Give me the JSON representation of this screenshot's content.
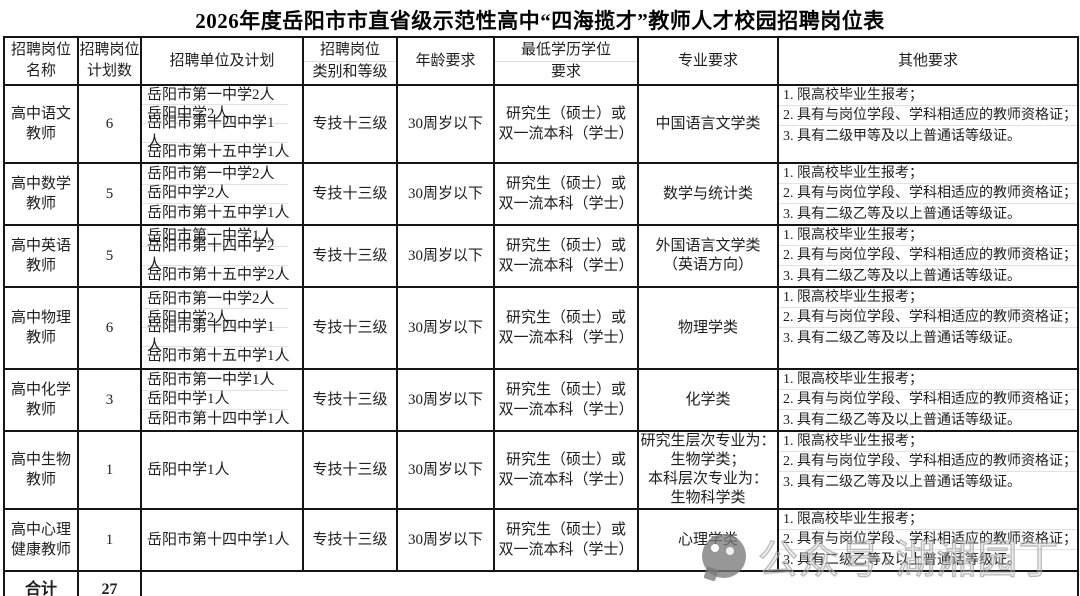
{
  "title": "2026年度岳阳市市直省级示范性高中“四海揽才”教师人才校园招聘岗位表",
  "header_cols": [
    {
      "lines": [
        "招聘岗位",
        "名称"
      ]
    },
    {
      "lines": [
        "招聘岗位",
        "计划数"
      ]
    },
    {
      "lines": [
        "招聘单位及计划"
      ]
    },
    {
      "lines": [
        "招聘岗位",
        "类别和等级"
      ],
      "divider": true
    },
    {
      "lines": [
        "年龄要求"
      ]
    },
    {
      "lines": [
        "最低学历学位",
        "要求"
      ],
      "divider": true
    },
    {
      "lines": [
        "专业要求"
      ]
    },
    {
      "lines": [
        "其他要求"
      ]
    }
  ],
  "rows": [
    {
      "name_lines": [
        "高中语文",
        "教师"
      ],
      "count": "6",
      "units": [
        "岳阳市第一中学2人",
        "岳阳中学2人",
        "岳阳市第十四中学1人",
        "岳阳市第十五中学1人"
      ],
      "grade": "专技十三级",
      "age": "30周岁以下",
      "degree_lines": [
        "研究生（硕士）或",
        "双一流本科（学士）"
      ],
      "major_lines": [
        "中国语言文学类"
      ],
      "others": [
        "1. 限高校毕业生报考；",
        "2. 具有与岗位学段、学科相适应的教师资格证；",
        "3. 具有二级甲等及以上普通话等级证。"
      ]
    },
    {
      "name_lines": [
        "高中数学",
        "教师"
      ],
      "count": "5",
      "units": [
        "岳阳市第一中学2人",
        "岳阳中学2人",
        "岳阳市第十五中学1人"
      ],
      "grade": "专技十三级",
      "age": "30周岁以下",
      "degree_lines": [
        "研究生（硕士）或",
        "双一流本科（学士）"
      ],
      "major_lines": [
        "数学与统计类"
      ],
      "others": [
        "1. 限高校毕业生报考；",
        "2. 具有与岗位学段、学科相适应的教师资格证；",
        "3. 具有二级乙等及以上普通话等级证。"
      ]
    },
    {
      "name_lines": [
        "高中英语",
        "教师"
      ],
      "count": "5",
      "units": [
        "岳阳市第一中学1人",
        "岳阳市第十四中学2人",
        "岳阳市第十五中学2人"
      ],
      "grade": "专技十三级",
      "age": "30周岁以下",
      "degree_lines": [
        "研究生（硕士）或",
        "双一流本科（学士）"
      ],
      "major_lines": [
        "外国语言文学类",
        "（英语方向）"
      ],
      "others": [
        "1. 限高校毕业生报考；",
        "2. 具有与岗位学段、学科相适应的教师资格证；",
        "3. 具有二级乙等及以上普通话等级证。"
      ]
    },
    {
      "name_lines": [
        "高中物理",
        "教师"
      ],
      "count": "6",
      "units": [
        "岳阳市第一中学2人",
        "岳阳中学2人",
        "岳阳市第十四中学1人",
        "岳阳市第十五中学1人"
      ],
      "grade": "专技十三级",
      "age": "30周岁以下",
      "degree_lines": [
        "研究生（硕士）或",
        "双一流本科（学士）"
      ],
      "major_lines": [
        "物理学类"
      ],
      "others": [
        "1. 限高校毕业生报考；",
        "2. 具有与岗位学段、学科相适应的教师资格证；",
        "3. 具有二级乙等及以上普通话等级证。"
      ]
    },
    {
      "name_lines": [
        "高中化学",
        "教师"
      ],
      "count": "3",
      "units": [
        "岳阳市第一中学1人",
        "岳阳中学1人",
        "岳阳市第十四中学1人"
      ],
      "grade": "专技十三级",
      "age": "30周岁以下",
      "degree_lines": [
        "研究生（硕士）或",
        "双一流本科（学士）"
      ],
      "major_lines": [
        "化学类"
      ],
      "others": [
        "1. 限高校毕业生报考；",
        "2. 具有与岗位学段、学科相适应的教师资格证；",
        "3. 具有二级乙等及以上普通话等级证。"
      ]
    },
    {
      "name_lines": [
        "高中生物",
        "教师"
      ],
      "count": "1",
      "units": [
        "岳阳中学1人"
      ],
      "grade": "专技十三级",
      "age": "30周岁以下",
      "degree_lines": [
        "研究生（硕士）或",
        "双一流本科（学士）"
      ],
      "major_lines": [
        "研究生层次专业为：",
        "生物学类；",
        "本科层次专业为：",
        "生物科学类"
      ],
      "others": [
        "1. 限高校毕业生报考；",
        "2. 具有与岗位学段、学科相适应的教师资格证；",
        "3. 具有二级乙等及以上普通话等级证。"
      ]
    },
    {
      "name_lines": [
        "高中心理",
        "健康教师"
      ],
      "count": "1",
      "units": [
        "岳阳市第十四中学1人"
      ],
      "grade": "专技十三级",
      "age": "30周岁以下",
      "degree_lines": [
        "研究生（硕士）或",
        "双一流本科（学士）"
      ],
      "major_lines": [
        "心理学类"
      ],
      "others": [
        "1. 限高校毕业生报考；",
        "2. 具有与岗位学段、学科相适应的教师资格证；",
        "3. 具有二级乙等及以上普通话等级证。"
      ]
    }
  ],
  "total": {
    "label": "合计",
    "count": "27"
  },
  "watermark": {
    "text": "公众号·湖湘园丁",
    "icon": "wechat-chat-bubble"
  },
  "colors": {
    "border": "#151515",
    "grid_faint": "#e2e2e2",
    "text": "#1e1e1e",
    "watermark_gray": "#ababab"
  }
}
